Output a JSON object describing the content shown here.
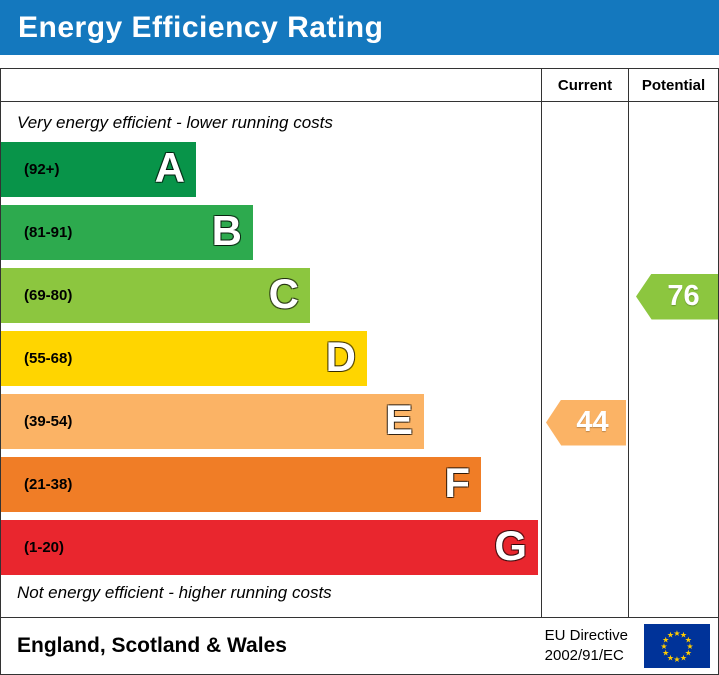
{
  "header": {
    "title": "Energy Efficiency Rating",
    "bg_color": "#1478be"
  },
  "columns": {
    "current": "Current",
    "potential": "Potential"
  },
  "captions": {
    "top": "Very energy efficient - lower running costs",
    "bottom": "Not energy efficient - higher running costs"
  },
  "chart_data": {
    "type": "bar",
    "title": "Energy Efficiency Rating",
    "bands": [
      {
        "letter": "A",
        "range": "(92+)",
        "color": "#089449"
      },
      {
        "letter": "B",
        "range": "(81-91)",
        "color": "#2daa4e"
      },
      {
        "letter": "C",
        "range": "(69-80)",
        "color": "#8cc63f"
      },
      {
        "letter": "D",
        "range": "(55-68)",
        "color": "#ffd500"
      },
      {
        "letter": "E",
        "range": "(39-54)",
        "color": "#fbb365"
      },
      {
        "letter": "F",
        "range": "(21-38)",
        "color": "#f07d26"
      },
      {
        "letter": "G",
        "range": "(1-20)",
        "color": "#e9262e"
      }
    ],
    "current": {
      "value": 44,
      "band": "E"
    },
    "potential": {
      "value": 76,
      "band": "C"
    }
  },
  "footer": {
    "region": "England, Scotland & Wales",
    "directive_line1": "EU Directive",
    "directive_line2": "2002/91/EC",
    "eu_flag": {
      "bg": "#003399",
      "star_color": "#ffcc00"
    }
  }
}
